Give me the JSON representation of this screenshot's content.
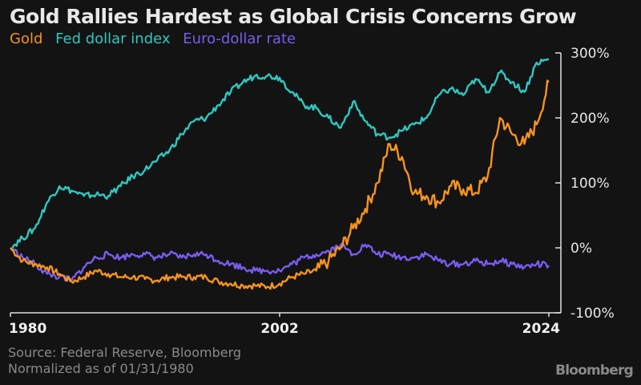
{
  "chart_data": {
    "type": "line",
    "title": "Gold Rallies Hardest as Global Crisis Concerns Grow",
    "xlabel": "",
    "ylabel": "",
    "xlim": [
      1980,
      2024.3
    ],
    "ylim": [
      -100,
      300
    ],
    "x_ticks": [
      1980,
      2002,
      2024
    ],
    "x_tick_labels": [
      "1980",
      "2002",
      "2024"
    ],
    "y_ticks": [
      300,
      200,
      100,
      0,
      -100
    ],
    "y_tick_labels": [
      "300%",
      "200%",
      "100%",
      "0%",
      "-100%"
    ],
    "y_axis_side": "right",
    "grid": false,
    "legend_placement": "top-left",
    "x": [
      1980,
      1981,
      1982,
      1983,
      1984,
      1985,
      1986,
      1987,
      1988,
      1989,
      1990,
      1991,
      1992,
      1993,
      1994,
      1995,
      1996,
      1997,
      1998,
      1999,
      2000,
      2001,
      2002,
      2003,
      2004,
      2005,
      2006,
      2007,
      2008,
      2009,
      2010,
      2011,
      2012,
      2013,
      2014,
      2015,
      2016,
      2017,
      2018,
      2019,
      2020,
      2021,
      2022,
      2023,
      2024
    ],
    "series": [
      {
        "name": "Gold",
        "color": "#f7931e",
        "values": [
          0,
          -20,
          -25,
          -30,
          -40,
          -52,
          -45,
          -35,
          -40,
          -45,
          -45,
          -48,
          -50,
          -45,
          -45,
          -45,
          -45,
          -52,
          -55,
          -58,
          -58,
          -60,
          -55,
          -45,
          -40,
          -35,
          -20,
          0,
          30,
          60,
          100,
          160,
          140,
          85,
          80,
          70,
          95,
          90,
          85,
          110,
          200,
          175,
          160,
          190,
          255
        ]
      },
      {
        "name": "Fed dollar index",
        "color": "#2ec8c0",
        "values": [
          0,
          15,
          30,
          70,
          95,
          88,
          80,
          82,
          80,
          95,
          110,
          120,
          135,
          150,
          175,
          195,
          200,
          220,
          240,
          255,
          265,
          265,
          262,
          240,
          220,
          215,
          200,
          185,
          225,
          195,
          175,
          170,
          180,
          190,
          200,
          235,
          245,
          235,
          260,
          240,
          270,
          255,
          240,
          285,
          290
        ]
      },
      {
        "name": "Euro-dollar rate",
        "color": "#7a5cf0",
        "values": [
          0,
          -15,
          -25,
          -40,
          -45,
          -50,
          -30,
          -15,
          -10,
          -15,
          -10,
          -10,
          -15,
          -10,
          -15,
          -10,
          -10,
          -20,
          -25,
          -30,
          -35,
          -35,
          -35,
          -25,
          -15,
          -10,
          -5,
          5,
          -10,
          5,
          -10,
          -10,
          -15,
          -15,
          -10,
          -20,
          -25,
          -25,
          -20,
          -25,
          -20,
          -25,
          -30,
          -25,
          -27
        ]
      }
    ]
  },
  "footer": {
    "source": "Source: Federal Reserve, Bloomberg",
    "note": "Normalized as of 01/31/1980",
    "brand": "Bloomberg"
  }
}
